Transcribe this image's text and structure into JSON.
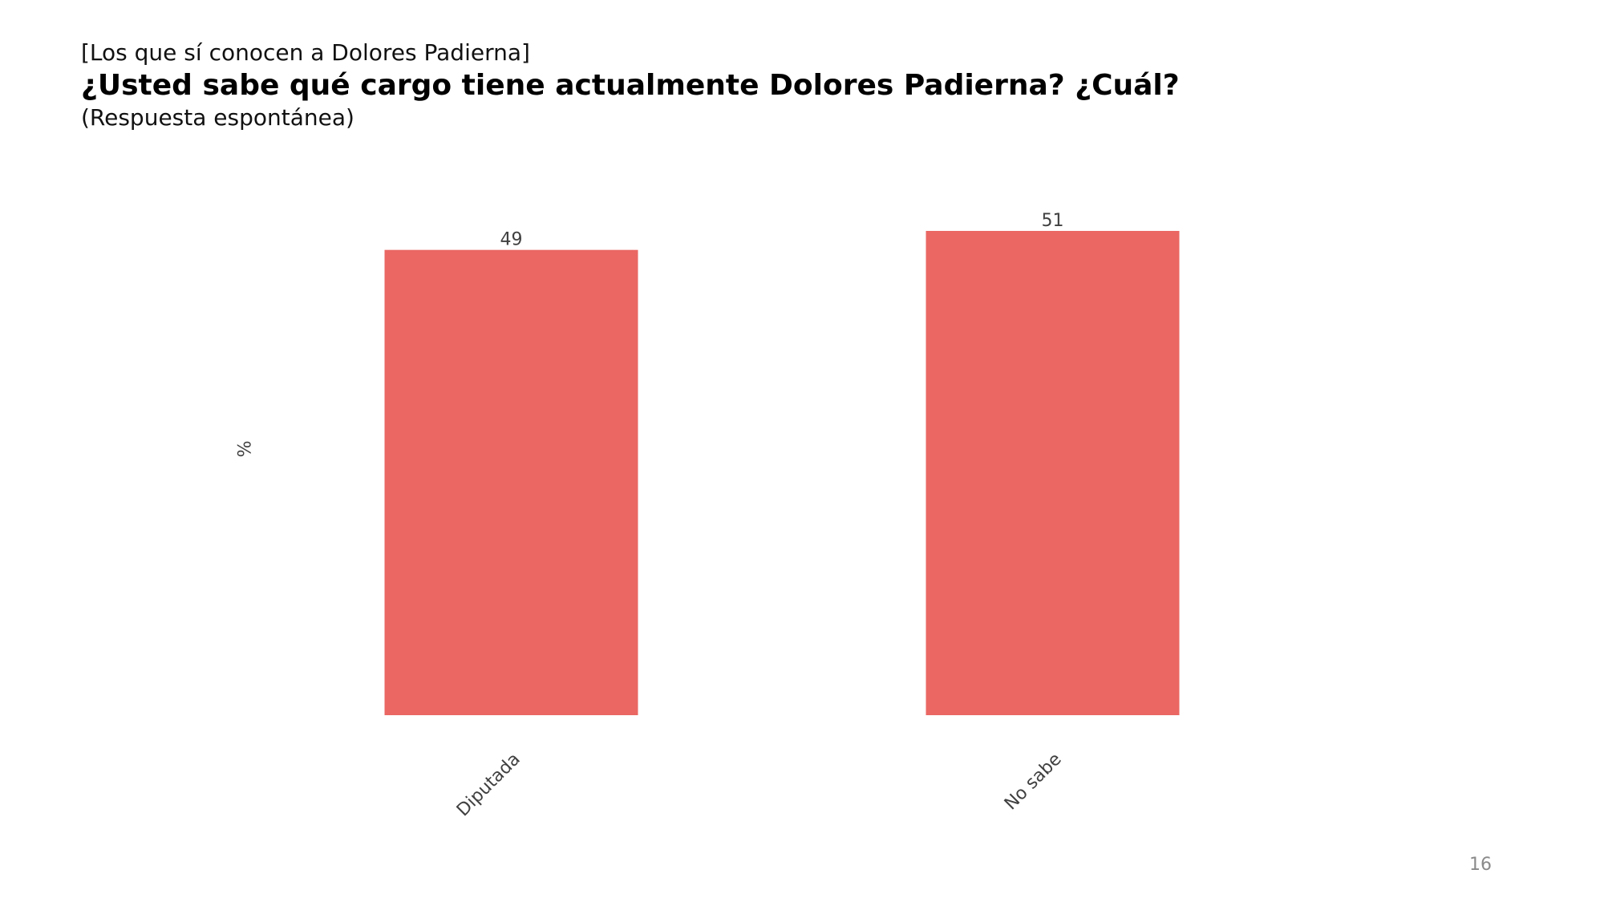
{
  "header": {
    "pre_title": "[Los que sí conocen a Dolores Padierna]",
    "title": "¿Usted sabe qué cargo tiene actualmente Dolores Padierna? ¿Cuál?",
    "subtitle": "(Respuesta espontánea)"
  },
  "page_number": "16",
  "chart_data": {
    "type": "bar",
    "categories": [
      "Diputada",
      "No sabe"
    ],
    "values": [
      49,
      51
    ],
    "data_labels": [
      "49",
      "51"
    ],
    "title": "",
    "xlabel": "",
    "ylabel": "%",
    "ylim": [
      0,
      51
    ],
    "grid": false,
    "legend": "none",
    "colors": {
      "bar": "#EA6763",
      "label": "#404040",
      "axis_text": "#404040"
    }
  }
}
